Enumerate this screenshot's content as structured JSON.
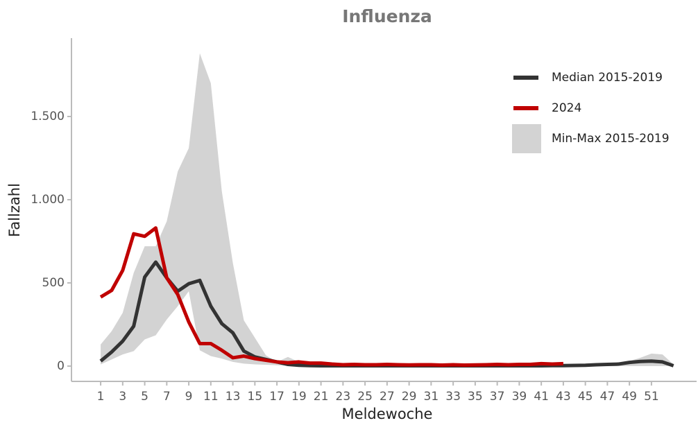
{
  "chart_data": {
    "type": "line",
    "title": "Influenza",
    "x_label": "Meldewoche",
    "y_label": "Fallzahl",
    "x": [
      1,
      2,
      3,
      4,
      5,
      6,
      7,
      8,
      9,
      10,
      11,
      12,
      13,
      14,
      15,
      16,
      17,
      18,
      19,
      20,
      21,
      22,
      23,
      24,
      25,
      26,
      27,
      28,
      29,
      30,
      31,
      32,
      33,
      34,
      35,
      36,
      37,
      38,
      39,
      40,
      41,
      42,
      43,
      44,
      45,
      46,
      47,
      48,
      49,
      50,
      51,
      52,
      53
    ],
    "series": [
      {
        "name": "Min-Max 2015-2019",
        "color": "#d3d3d3",
        "kind": "band",
        "lower": [
          10,
          40,
          70,
          90,
          160,
          185,
          280,
          360,
          450,
          95,
          60,
          45,
          25,
          15,
          10,
          8,
          5,
          3,
          0,
          0,
          0,
          0,
          0,
          0,
          0,
          0,
          0,
          0,
          0,
          0,
          0,
          0,
          0,
          0,
          0,
          0,
          0,
          0,
          0,
          0,
          0,
          0,
          0,
          0,
          0,
          0,
          0,
          0,
          0,
          0,
          0,
          0,
          0
        ],
        "upper": [
          130,
          210,
          320,
          560,
          720,
          720,
          870,
          1170,
          1310,
          1880,
          1700,
          1050,
          620,
          275,
          170,
          65,
          25,
          55,
          25,
          20,
          15,
          10,
          10,
          10,
          10,
          10,
          10,
          10,
          10,
          10,
          10,
          10,
          10,
          10,
          10,
          10,
          10,
          10,
          10,
          10,
          10,
          10,
          10,
          10,
          10,
          10,
          10,
          10,
          30,
          50,
          75,
          70,
          10
        ]
      },
      {
        "name": "Median 2015-2019",
        "color": "#333333",
        "kind": "line",
        "values": [
          30,
          85,
          150,
          240,
          535,
          625,
          530,
          450,
          495,
          515,
          360,
          255,
          200,
          90,
          55,
          40,
          25,
          10,
          5,
          3,
          2,
          2,
          2,
          2,
          2,
          2,
          2,
          2,
          2,
          2,
          2,
          2,
          2,
          2,
          2,
          2,
          2,
          2,
          2,
          2,
          2,
          3,
          3,
          4,
          5,
          8,
          10,
          12,
          22,
          28,
          30,
          25,
          2
        ]
      },
      {
        "name": "2024",
        "color": "#c00000",
        "kind": "line",
        "values": [
          415,
          455,
          575,
          795,
          780,
          830,
          530,
          430,
          265,
          135,
          135,
          95,
          50,
          60,
          45,
          35,
          25,
          20,
          25,
          18,
          18,
          12,
          8,
          10,
          8,
          8,
          10,
          8,
          7,
          8,
          8,
          6,
          8,
          6,
          7,
          8,
          10,
          8,
          10,
          10,
          15,
          12,
          15,
          null,
          null,
          null,
          null,
          null,
          null,
          null,
          null,
          null,
          null
        ]
      }
    ],
    "xlim": [
      -1.65,
      55.1
    ],
    "ylim": [
      -92,
      1971
    ],
    "xticks": [
      1,
      3,
      5,
      7,
      9,
      11,
      13,
      15,
      17,
      19,
      21,
      23,
      25,
      27,
      29,
      31,
      33,
      35,
      37,
      39,
      41,
      43,
      45,
      47,
      49,
      51
    ],
    "yticks": [
      0,
      500,
      {
        "value": 1000,
        "label": "1.000"
      },
      {
        "value": 1500,
        "label": "1.500"
      }
    ],
    "legend": "top-right",
    "grid": false
  }
}
